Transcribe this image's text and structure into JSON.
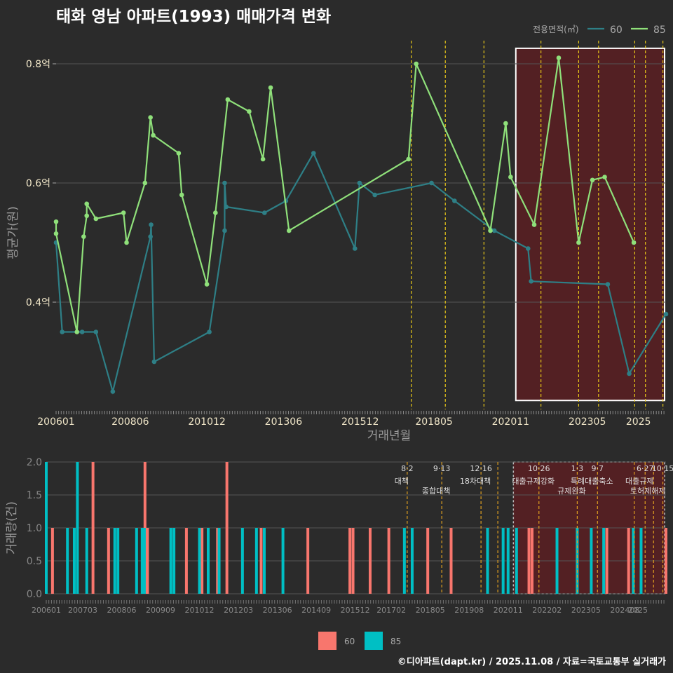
{
  "title": "태화 영남 아파트(1993) 매매가격 변화",
  "footer": "©디아파트(dapt.kr) / 2025.11.08 / 자료=국토교통부 실거래가",
  "colors": {
    "background": "#2b2b2b",
    "grid": "#555555",
    "line60": "#2e7f86",
    "line85": "#8fe07a",
    "bar60": "#f8766d",
    "bar85": "#00bfc4",
    "policy_vline": "#e6c619",
    "policy_vline_lower": "#e0a020",
    "highlight_fill": "#5a1f22",
    "axis_text": "#f0e6c8",
    "tick_text_lower": "#888888"
  },
  "chart_data": [
    {
      "type": "line",
      "xlabel": "거래년월",
      "ylabel": "평균가(원)",
      "ylim": [
        0.22,
        0.86
      ],
      "yticks": [
        0.4,
        0.6,
        0.8
      ],
      "ytick_labels": [
        "0.4억",
        "0.6억",
        "0.8억"
      ],
      "xtick_labels": [
        "200601",
        "200806",
        "201012",
        "201306",
        "201512",
        "201805",
        "202011",
        "202305",
        "2025"
      ],
      "xtick_values": [
        2006.0,
        2008.42,
        2010.92,
        2013.42,
        2015.92,
        2018.33,
        2020.83,
        2023.33,
        2025.0
      ],
      "xlim": [
        2006.0,
        2025.9
      ],
      "legend": {
        "title": "전용면적(㎡)",
        "entries": [
          "60",
          "85"
        ],
        "position": "top-right"
      },
      "highlight_box": {
        "x_start": 2021.0,
        "x_end": 2025.9,
        "y_start": 0.235,
        "y_end": 0.826
      },
      "policy_vlines": [
        2017.59,
        2018.7,
        2019.96,
        2021.82,
        2023.05,
        2023.7,
        2024.88,
        2025.23,
        2025.8
      ],
      "series": [
        {
          "name": "60",
          "points": [
            [
              2006.0,
              0.5
            ],
            [
              2006.2,
              0.35
            ],
            [
              2006.85,
              0.35
            ],
            [
              2007.3,
              0.35
            ],
            [
              2007.85,
              0.25
            ],
            [
              2009.08,
              0.51
            ],
            [
              2009.1,
              0.53
            ],
            [
              2009.2,
              0.3
            ],
            [
              2011.0,
              0.35
            ],
            [
              2011.5,
              0.52
            ],
            [
              2011.5,
              0.6
            ],
            [
              2011.55,
              0.56
            ],
            [
              2012.8,
              0.55
            ],
            [
              2013.5,
              0.57
            ],
            [
              2014.4,
              0.65
            ],
            [
              2015.75,
              0.49
            ],
            [
              2015.9,
              0.6
            ],
            [
              2016.4,
              0.58
            ],
            [
              2018.25,
              0.6
            ],
            [
              2019.0,
              0.57
            ],
            [
              2020.3,
              0.52
            ],
            [
              2021.4,
              0.49
            ],
            [
              2021.5,
              0.435
            ],
            [
              2024.0,
              0.43
            ],
            [
              2024.7,
              0.28
            ],
            [
              2025.9,
              0.38
            ]
          ]
        },
        {
          "name": "85",
          "points": [
            [
              2006.0,
              0.535
            ],
            [
              2006.0,
              0.515
            ],
            [
              2006.68,
              0.35
            ],
            [
              2006.9,
              0.51
            ],
            [
              2007.0,
              0.545
            ],
            [
              2007.0,
              0.565
            ],
            [
              2007.3,
              0.54
            ],
            [
              2008.2,
              0.55
            ],
            [
              2008.3,
              0.5
            ],
            [
              2008.9,
              0.6
            ],
            [
              2009.08,
              0.71
            ],
            [
              2009.17,
              0.68
            ],
            [
              2010.0,
              0.65
            ],
            [
              2010.1,
              0.58
            ],
            [
              2010.92,
              0.43
            ],
            [
              2011.2,
              0.55
            ],
            [
              2011.6,
              0.74
            ],
            [
              2012.3,
              0.72
            ],
            [
              2012.75,
              0.64
            ],
            [
              2013.0,
              0.76
            ],
            [
              2013.6,
              0.52
            ],
            [
              2017.5,
              0.64
            ],
            [
              2017.75,
              0.8
            ],
            [
              2020.17,
              0.52
            ],
            [
              2020.67,
              0.7
            ],
            [
              2020.83,
              0.61
            ],
            [
              2021.6,
              0.53
            ],
            [
              2022.4,
              0.81
            ],
            [
              2023.05,
              0.5
            ],
            [
              2023.5,
              0.605
            ],
            [
              2023.9,
              0.61
            ],
            [
              2024.85,
              0.5
            ]
          ]
        }
      ]
    },
    {
      "type": "bar",
      "xlabel": "",
      "ylabel": "거래량(건)",
      "ylim": [
        0,
        2
      ],
      "yticks": [
        0,
        0.5,
        1,
        1.5,
        2
      ],
      "ytick_labels": [
        "0.0",
        "0.5",
        "1.0",
        "1.5",
        "2.0"
      ],
      "xtick_labels": [
        "200601",
        "200703",
        "200806",
        "200909",
        "201012",
        "201203",
        "201306",
        "201409",
        "201512",
        "201702",
        "201805",
        "201908",
        "202011",
        "202202",
        "202305",
        "202408",
        "2025"
      ],
      "xtick_values": [
        2006.0,
        2007.17,
        2008.42,
        2009.67,
        2010.92,
        2012.17,
        2013.42,
        2014.67,
        2015.92,
        2017.08,
        2018.33,
        2019.58,
        2020.83,
        2022.08,
        2023.33,
        2024.58,
        2025.0
      ],
      "xlim": [
        2006.0,
        2025.9
      ],
      "legend": {
        "entries": [
          "60",
          "85"
        ],
        "position": "bottom"
      },
      "policy_events": [
        {
          "x": 2017.59,
          "date": "8·2",
          "label": "대책"
        },
        {
          "x": 2018.7,
          "date": "9·13",
          "label": "종합대책"
        },
        {
          "x": 2019.96,
          "date": "12·16",
          "label": "18차대책"
        },
        {
          "x": 2020.5,
          "date": "",
          "label": ""
        },
        {
          "x": 2021.82,
          "date": "10·26",
          "label": "대출규제강화"
        },
        {
          "x": 2023.05,
          "date": "1·3",
          "label": "규제완화"
        },
        {
          "x": 2023.7,
          "date": "9·7",
          "label": "특례대출축소"
        },
        {
          "x": 2024.88,
          "date": "",
          "label": ""
        },
        {
          "x": 2025.23,
          "date": "6·27",
          "label": "대출규제"
        },
        {
          "x": 2025.5,
          "date": "",
          "label": "토허제해제"
        },
        {
          "x": 2025.8,
          "date": "10·15",
          "label": ""
        }
      ],
      "highlight_box": {
        "x_start": 2021.0,
        "x_end": 2025.9
      },
      "series": [
        {
          "name": "60",
          "bars": [
            [
              2006.2,
              1
            ],
            [
              2007.5,
              2
            ],
            [
              2008.0,
              1
            ],
            [
              2009.17,
              2
            ],
            [
              2009.25,
              1
            ],
            [
              2010.5,
              1
            ],
            [
              2011.0,
              1
            ],
            [
              2011.5,
              1
            ],
            [
              2011.8,
              2
            ],
            [
              2012.9,
              1
            ],
            [
              2014.4,
              1
            ],
            [
              2015.75,
              1
            ],
            [
              2015.85,
              1
            ],
            [
              2016.4,
              1
            ],
            [
              2017.0,
              1
            ],
            [
              2018.25,
              1
            ],
            [
              2019.0,
              1
            ],
            [
              2021.5,
              1
            ],
            [
              2021.6,
              1
            ],
            [
              2024.0,
              1
            ],
            [
              2024.7,
              1
            ],
            [
              2025.9,
              1
            ]
          ]
        },
        {
          "name": "85",
          "bars": [
            [
              2006.0,
              2
            ],
            [
              2006.68,
              1
            ],
            [
              2006.9,
              1
            ],
            [
              2007.0,
              2
            ],
            [
              2007.3,
              1
            ],
            [
              2008.2,
              1
            ],
            [
              2008.3,
              1
            ],
            [
              2008.9,
              1
            ],
            [
              2009.08,
              1
            ],
            [
              2009.15,
              1
            ],
            [
              2010.0,
              1
            ],
            [
              2010.1,
              1
            ],
            [
              2010.92,
              1
            ],
            [
              2011.2,
              1
            ],
            [
              2011.55,
              1
            ],
            [
              2012.3,
              1
            ],
            [
              2012.75,
              1
            ],
            [
              2013.0,
              1
            ],
            [
              2013.6,
              1
            ],
            [
              2017.5,
              1
            ],
            [
              2017.75,
              1
            ],
            [
              2020.17,
              1
            ],
            [
              2020.67,
              1
            ],
            [
              2020.83,
              1
            ],
            [
              2021.1,
              1
            ],
            [
              2022.4,
              1
            ],
            [
              2023.05,
              1
            ],
            [
              2023.5,
              1
            ],
            [
              2023.9,
              1
            ],
            [
              2024.85,
              1
            ],
            [
              2025.1,
              1
            ]
          ]
        }
      ]
    }
  ]
}
